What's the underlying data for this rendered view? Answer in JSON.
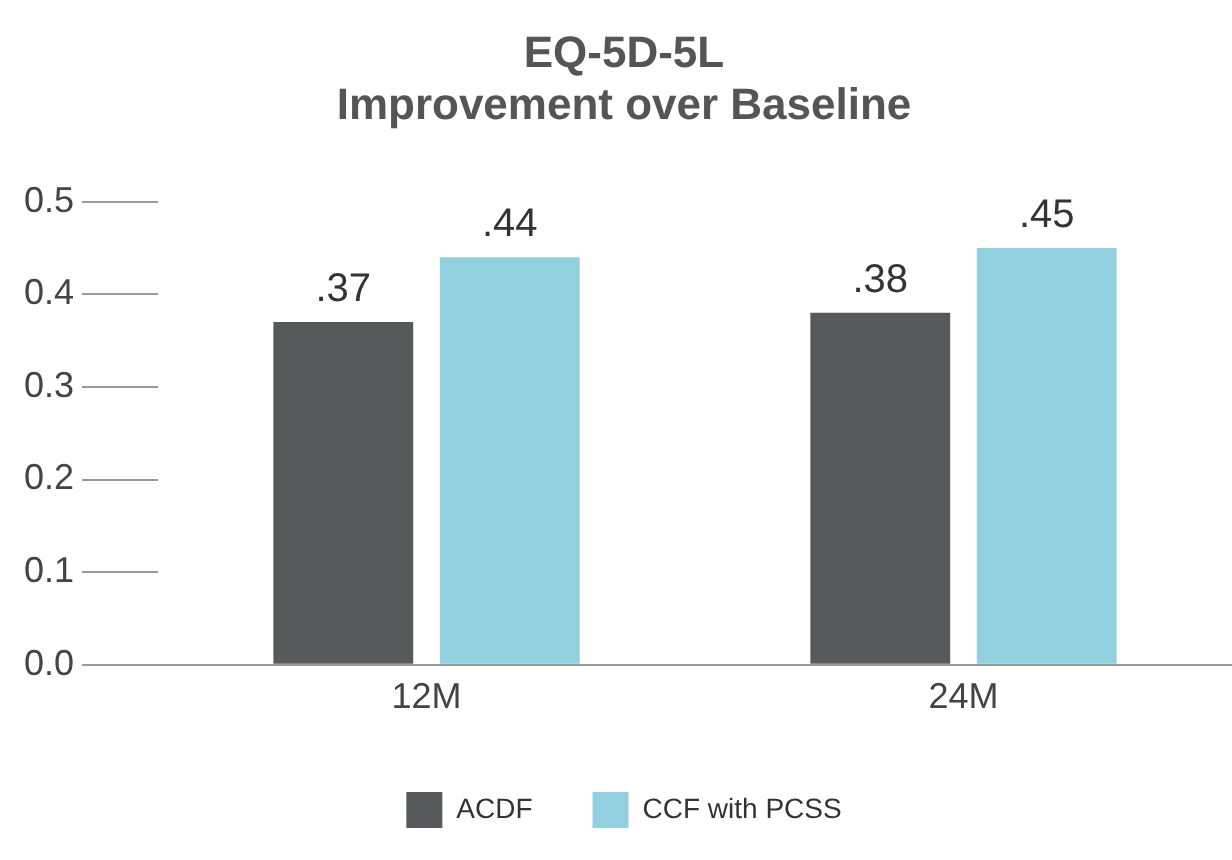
{
  "chart_data": {
    "type": "bar",
    "title": "EQ-5D-5L\nImprovement over Baseline",
    "categories": [
      "12M",
      "24M"
    ],
    "series": [
      {
        "name": "ACDF",
        "color": "#58595b",
        "values": [
          0.37,
          0.38
        ],
        "value_labels": [
          ".37",
          ".38"
        ]
      },
      {
        "name": "CCF with PCSS",
        "color": "#92cfdf",
        "values": [
          0.44,
          0.45
        ],
        "value_labels": [
          ".44",
          ".45"
        ]
      }
    ],
    "ylim": [
      0,
      0.5
    ],
    "yticks": [
      {
        "value": 0,
        "label": "0.0"
      },
      {
        "value": 0.1,
        "label": "0.1"
      },
      {
        "value": 0.2,
        "label": "0.2"
      },
      {
        "value": 0.3,
        "label": "0.3"
      },
      {
        "value": 0.4,
        "label": "0.4"
      },
      {
        "value": 0.5,
        "label": "0.5"
      }
    ],
    "grid": false,
    "legend": "bottom"
  }
}
